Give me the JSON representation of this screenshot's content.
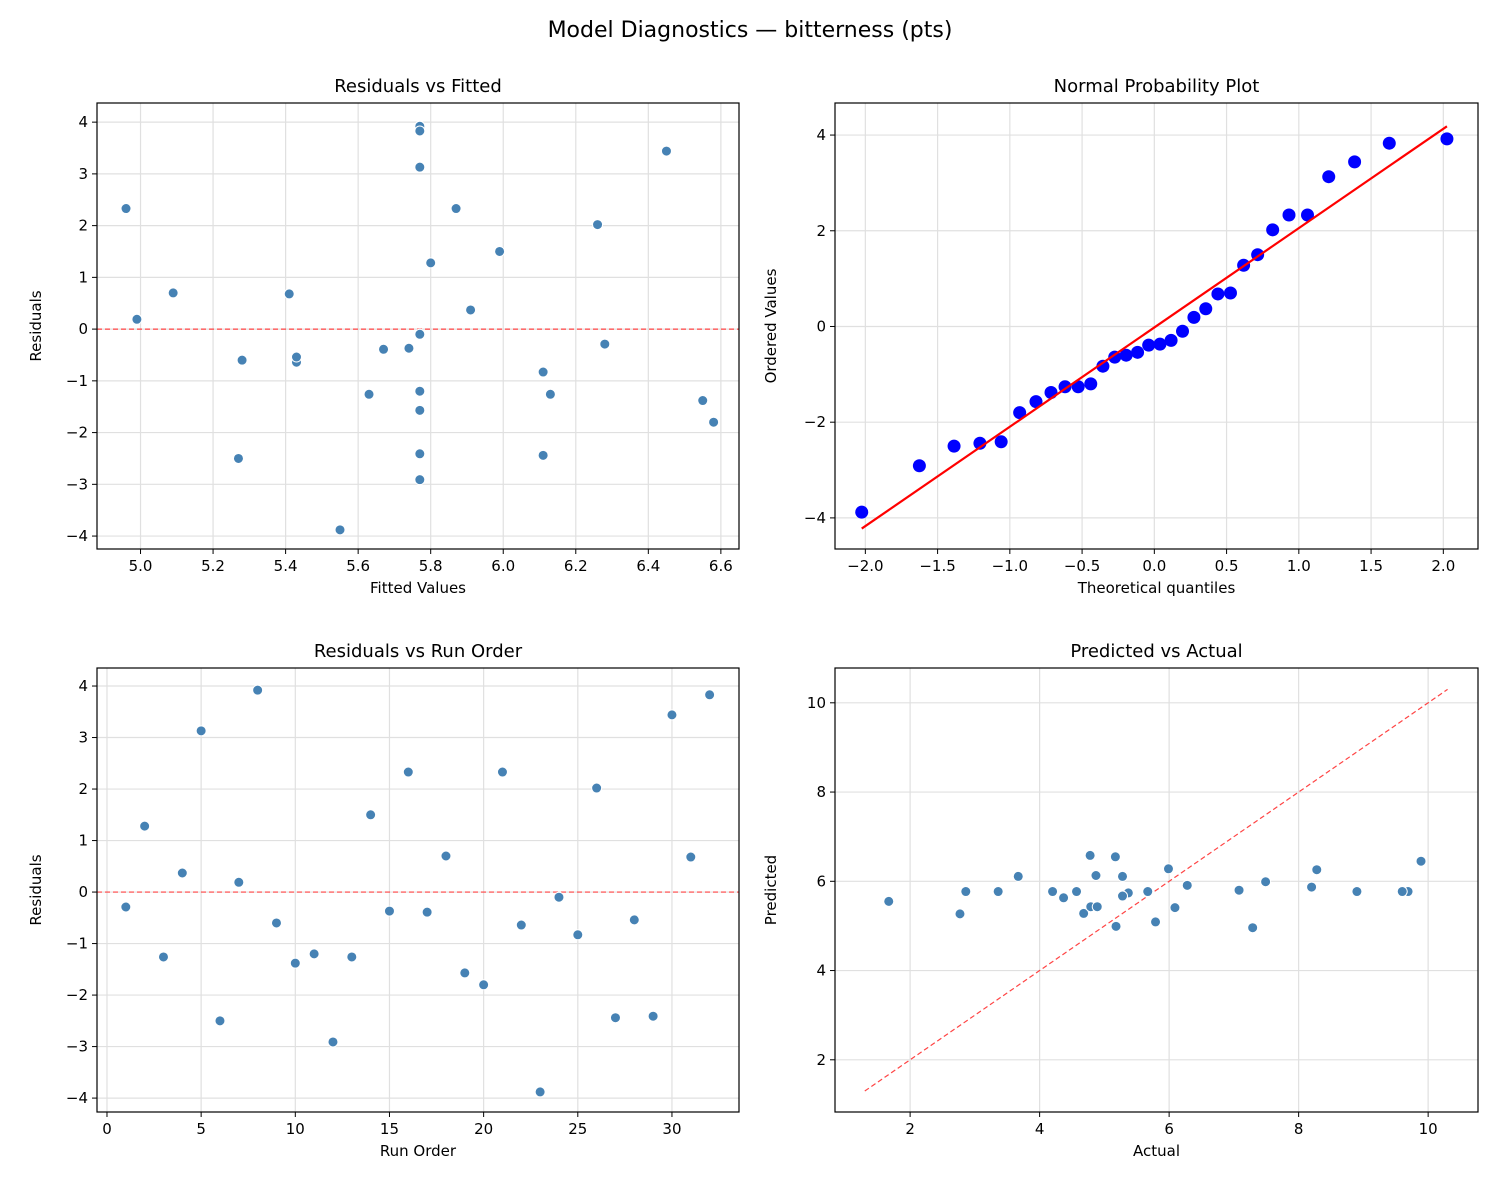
{
  "figure": {
    "title": "Model Diagnostics — bitterness (pts)"
  },
  "colors": {
    "points": "#4682b4",
    "qq_points": "#0000ff",
    "qq_line": "#ff0000",
    "reference_line": "#ff4444",
    "grid": "#e0e0e0"
  },
  "chart_data": [
    {
      "id": "resid-fitted",
      "type": "scatter",
      "title": "Residuals vs Fitted",
      "xlabel": "Fitted Values",
      "ylabel": "Residuals",
      "xlim": [
        4.88,
        6.65
      ],
      "ylim": [
        -4.25,
        4.37
      ],
      "xticks": [
        "5.0",
        "5.2",
        "5.4",
        "5.6",
        "5.8",
        "6.0",
        "6.2",
        "6.4",
        "6.6"
      ],
      "yticks": [
        "−4",
        "−3",
        "−2",
        "−1",
        "0",
        "1",
        "2",
        "3",
        "4"
      ],
      "grid": true,
      "reference_line": {
        "type": "horizontal",
        "y": 0,
        "style": "dashed"
      },
      "x_source": "fitted",
      "y_source": "residual"
    },
    {
      "id": "normal-prob",
      "type": "scatter",
      "title": "Normal Probability Plot",
      "xlabel": "Theoretical quantiles",
      "ylabel": "Ordered Values",
      "xlim": [
        -2.21,
        2.24
      ],
      "ylim": [
        -4.65,
        4.67
      ],
      "xticks": [
        "−2.0",
        "−1.5",
        "−1.0",
        "−0.5",
        "0.0",
        "0.5",
        "1.0",
        "1.5",
        "2.0"
      ],
      "yticks": [
        "−4",
        "−2",
        "0",
        "2",
        "4"
      ],
      "grid": true,
      "fit_line": "least-squares",
      "theoretical_quantiles": [
        -2.025,
        -1.626,
        -1.386,
        -1.207,
        -1.06,
        -0.932,
        -0.819,
        -0.715,
        -0.618,
        -0.527,
        -0.44,
        -0.356,
        -0.274,
        -0.195,
        -0.116,
        -0.039,
        0.039,
        0.116,
        0.195,
        0.274,
        0.356,
        0.44,
        0.527,
        0.618,
        0.715,
        0.819,
        0.932,
        1.06,
        1.207,
        1.386,
        1.626,
        2.025
      ],
      "ordered_values": [
        -3.88,
        -2.91,
        -2.5,
        -2.44,
        -2.41,
        -1.8,
        -1.57,
        -1.38,
        -1.26,
        -1.26,
        -1.2,
        -0.83,
        -0.64,
        -0.6,
        -0.54,
        -0.39,
        -0.37,
        -0.29,
        -0.1,
        0.19,
        0.37,
        0.68,
        0.7,
        1.28,
        1.5,
        2.02,
        2.33,
        2.33,
        3.13,
        3.44,
        3.83,
        3.92
      ]
    },
    {
      "id": "resid-run",
      "type": "scatter",
      "title": "Residuals vs Run Order",
      "xlabel": "Run Order",
      "ylabel": "Residuals",
      "xlim": [
        -0.53,
        33.56
      ],
      "ylim": [
        -4.27,
        4.35
      ],
      "xticks": [
        "0",
        "5",
        "10",
        "15",
        "20",
        "25",
        "30"
      ],
      "yticks": [
        "−4",
        "−3",
        "−2",
        "−1",
        "0",
        "1",
        "2",
        "3",
        "4"
      ],
      "grid": true,
      "reference_line": {
        "type": "horizontal",
        "y": 0,
        "style": "dashed"
      },
      "x_source": "run",
      "y_source": "residual"
    },
    {
      "id": "pred-actual",
      "type": "scatter",
      "title": "Predicted vs Actual",
      "xlabel": "Actual",
      "ylabel": "Predicted",
      "xlim": [
        0.84,
        10.77
      ],
      "ylim": [
        0.83,
        10.78
      ],
      "xticks": [
        "2",
        "4",
        "6",
        "8",
        "10"
      ],
      "yticks": [
        "2",
        "4",
        "6",
        "8",
        "10"
      ],
      "grid": true,
      "reference_line": {
        "type": "diagonal",
        "range": [
          1.3,
          10.3
        ],
        "style": "dashed"
      },
      "x_source": "actual",
      "y_source": "fitted"
    }
  ],
  "runs": {
    "run": [
      1,
      2,
      3,
      4,
      5,
      6,
      7,
      8,
      9,
      10,
      11,
      12,
      13,
      14,
      15,
      16,
      17,
      18,
      19,
      20,
      21,
      22,
      23,
      24,
      25,
      26,
      27,
      28,
      29,
      30,
      31,
      32
    ],
    "residual": [
      -0.29,
      1.28,
      -1.26,
      0.37,
      3.13,
      -2.5,
      0.19,
      3.92,
      -0.6,
      -1.38,
      -1.2,
      -2.91,
      -1.26,
      1.5,
      -0.37,
      2.33,
      -0.39,
      0.7,
      -1.57,
      -1.8,
      2.33,
      -0.64,
      -3.88,
      -0.1,
      -0.83,
      2.02,
      -2.44,
      -0.54,
      -2.41,
      3.44,
      0.68,
      3.83
    ],
    "fitted": [
      6.28,
      5.8,
      5.63,
      5.91,
      5.77,
      5.27,
      4.99,
      5.77,
      5.28,
      6.55,
      5.77,
      5.77,
      6.13,
      5.99,
      5.74,
      4.96,
      5.67,
      5.09,
      5.77,
      6.58,
      5.87,
      5.43,
      5.55,
      5.77,
      6.11,
      6.26,
      6.11,
      5.43,
      5.77,
      6.45,
      5.41,
      5.77
    ],
    "actual": [
      5.99,
      7.08,
      4.37,
      6.28,
      8.9,
      2.77,
      5.18,
      9.69,
      4.68,
      5.17,
      4.57,
      2.86,
      4.87,
      7.49,
      5.37,
      7.29,
      5.28,
      5.79,
      4.2,
      4.78,
      8.2,
      4.79,
      1.67,
      5.67,
      5.28,
      8.28,
      3.67,
      4.89,
      3.36,
      9.89,
      6.09,
      9.6
    ]
  }
}
